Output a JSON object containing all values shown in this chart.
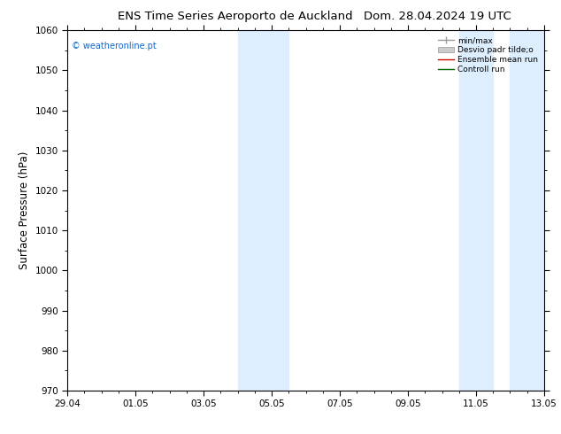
{
  "title_left": "ENS Time Series Aeroporto de Auckland",
  "title_right": "Dom. 28.04.2024 19 UTC",
  "ylabel": "Surface Pressure (hPa)",
  "ylim": [
    970,
    1060
  ],
  "yticks": [
    970,
    980,
    990,
    1000,
    1010,
    1020,
    1030,
    1040,
    1050,
    1060
  ],
  "xlim_start": 0,
  "xlim_end": 14,
  "xtick_positions": [
    0,
    2,
    4,
    6,
    8,
    10,
    12,
    14
  ],
  "xtick_labels": [
    "29.04",
    "01.05",
    "03.05",
    "05.05",
    "07.05",
    "09.05",
    "11.05",
    "13.05"
  ],
  "shaded_bands": [
    {
      "xstart": 5.0,
      "xend": 6.5
    },
    {
      "xstart": 11.5,
      "xend": 12.5
    },
    {
      "xstart": 13.0,
      "xend": 14.0
    }
  ],
  "shaded_color": "#ddeeff",
  "watermark": "© weatheronline.pt",
  "legend_labels": [
    "min/max",
    "Desvio padr tilde;o",
    "Ensemble mean run",
    "Controll run"
  ],
  "background_color": "#ffffff",
  "title_fontsize": 9.5,
  "tick_fontsize": 7.5,
  "ylabel_fontsize": 8.5
}
